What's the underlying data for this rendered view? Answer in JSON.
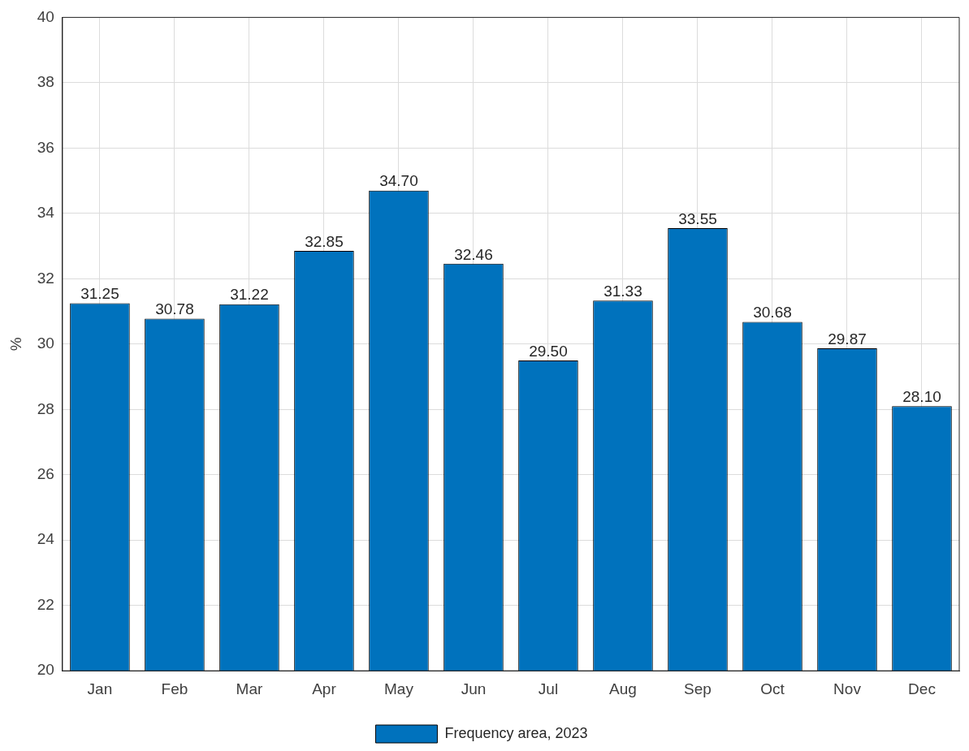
{
  "chart_data": {
    "type": "bar",
    "ylabel": "%",
    "categories": [
      "Jan",
      "Feb",
      "Mar",
      "Apr",
      "May",
      "Jun",
      "Jul",
      "Aug",
      "Sep",
      "Oct",
      "Nov",
      "Dec"
    ],
    "series": [
      {
        "name": "Frequency area, 2023",
        "color": "#0072bd",
        "values": [
          31.25,
          30.78,
          31.22,
          32.85,
          34.7,
          32.46,
          29.5,
          31.33,
          33.55,
          30.68,
          29.87,
          28.1
        ]
      }
    ],
    "value_labels": [
      "31.25",
      "30.78",
      "31.22",
      "32.85",
      "34.70",
      "32.46",
      "29.50",
      "31.33",
      "33.55",
      "30.68",
      "29.87",
      "28.10"
    ],
    "ylim": [
      20,
      40
    ],
    "yticks": [
      20,
      22,
      24,
      26,
      28,
      30,
      32,
      34,
      36,
      38,
      40
    ],
    "grid": true,
    "legend": "bottom"
  }
}
